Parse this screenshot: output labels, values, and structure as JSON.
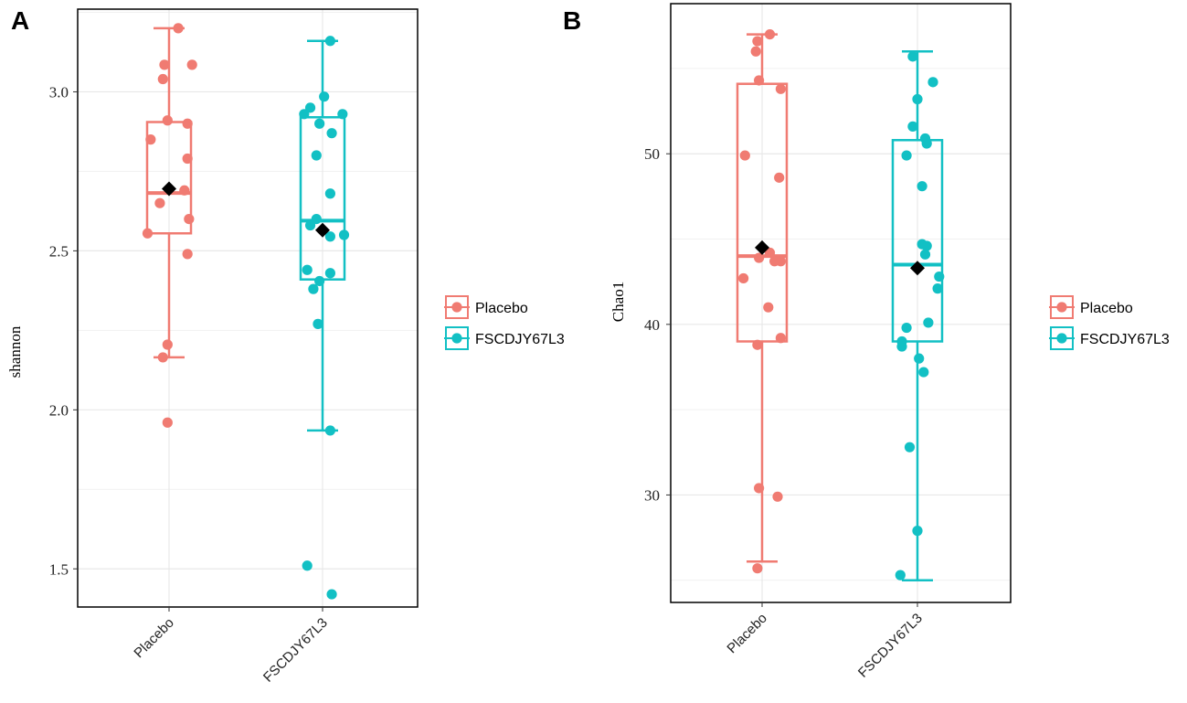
{
  "colors": {
    "placebo": "#F07B72",
    "treatment": "#12C0C4",
    "mean_marker": "#000000",
    "grid": "#e8e8e8",
    "frame": "#000000"
  },
  "legend": {
    "title": "",
    "items": [
      {
        "label": "Placebo",
        "color": "#F07B72"
      },
      {
        "label": "FSCDJY67L3",
        "color": "#12C0C4"
      }
    ]
  },
  "chart_data": [
    {
      "panel": "A",
      "type": "boxplot",
      "ylabel": "shannon",
      "ylim": [
        1.38,
        3.26
      ],
      "yticks": [
        1.5,
        2.0,
        2.5,
        3.0
      ],
      "ytick_labels": [
        "1.5",
        "2.0",
        "2.5",
        "3.0"
      ],
      "categories": [
        "Placebo",
        "FSCDJY67L3"
      ],
      "groups": [
        {
          "name": "Placebo",
          "color": "#F07B72",
          "whisker_low": 2.165,
          "q1": 2.555,
          "median": 2.682,
          "q3": 2.905,
          "whisker_high": 3.2,
          "mean": 2.695,
          "points": [
            {
              "jitter": 0.06,
              "y": 3.2
            },
            {
              "jitter": -0.03,
              "y": 3.085
            },
            {
              "jitter": 0.15,
              "y": 3.085
            },
            {
              "jitter": -0.04,
              "y": 3.04
            },
            {
              "jitter": -0.01,
              "y": 2.91
            },
            {
              "jitter": 0.12,
              "y": 2.9
            },
            {
              "jitter": -0.12,
              "y": 2.85
            },
            {
              "jitter": 0.12,
              "y": 2.79
            },
            {
              "jitter": 0.1,
              "y": 2.69
            },
            {
              "jitter": -0.06,
              "y": 2.65
            },
            {
              "jitter": 0.13,
              "y": 2.6
            },
            {
              "jitter": -0.14,
              "y": 2.555
            },
            {
              "jitter": 0.12,
              "y": 2.49
            },
            {
              "jitter": -0.01,
              "y": 2.205
            },
            {
              "jitter": -0.04,
              "y": 2.165
            },
            {
              "jitter": -0.01,
              "y": 1.96
            }
          ]
        },
        {
          "name": "FSCDJY67L3",
          "color": "#12C0C4",
          "whisker_low": 1.935,
          "q1": 2.41,
          "median": 2.595,
          "q3": 2.92,
          "whisker_high": 3.16,
          "mean": 2.565,
          "points": [
            {
              "jitter": 0.05,
              "y": 3.16
            },
            {
              "jitter": 0.01,
              "y": 2.985
            },
            {
              "jitter": -0.08,
              "y": 2.95
            },
            {
              "jitter": -0.12,
              "y": 2.93
            },
            {
              "jitter": 0.13,
              "y": 2.93
            },
            {
              "jitter": -0.02,
              "y": 2.9
            },
            {
              "jitter": 0.06,
              "y": 2.87
            },
            {
              "jitter": -0.04,
              "y": 2.8
            },
            {
              "jitter": 0.05,
              "y": 2.68
            },
            {
              "jitter": -0.04,
              "y": 2.6
            },
            {
              "jitter": -0.08,
              "y": 2.58
            },
            {
              "jitter": 0.14,
              "y": 2.55
            },
            {
              "jitter": 0.05,
              "y": 2.545
            },
            {
              "jitter": -0.1,
              "y": 2.44
            },
            {
              "jitter": 0.05,
              "y": 2.43
            },
            {
              "jitter": -0.02,
              "y": 2.405
            },
            {
              "jitter": -0.06,
              "y": 2.38
            },
            {
              "jitter": -0.03,
              "y": 2.27
            },
            {
              "jitter": 0.05,
              "y": 1.935
            },
            {
              "jitter": -0.1,
              "y": 1.51
            },
            {
              "jitter": 0.06,
              "y": 1.42
            }
          ]
        }
      ]
    },
    {
      "panel": "B",
      "type": "boxplot",
      "ylabel": "Chao1",
      "ylim": [
        23.7,
        58.8
      ],
      "yticks": [
        30,
        40,
        50
      ],
      "ytick_labels": [
        "30",
        "40",
        "50"
      ],
      "categories": [
        "Placebo",
        "FSCDJY67L3"
      ],
      "groups": [
        {
          "name": "Placebo",
          "color": "#F07B72",
          "whisker_low": 26.1,
          "q1": 39.0,
          "median": 44.0,
          "q3": 54.1,
          "whisker_high": 57.0,
          "mean": 44.5,
          "points": [
            {
              "jitter": 0.05,
              "y": 57.0
            },
            {
              "jitter": -0.03,
              "y": 56.6
            },
            {
              "jitter": -0.04,
              "y": 56.0
            },
            {
              "jitter": -0.02,
              "y": 54.3
            },
            {
              "jitter": 0.12,
              "y": 53.8
            },
            {
              "jitter": -0.11,
              "y": 49.9
            },
            {
              "jitter": 0.11,
              "y": 48.6
            },
            {
              "jitter": 0.05,
              "y": 44.2
            },
            {
              "jitter": -0.02,
              "y": 43.9
            },
            {
              "jitter": 0.08,
              "y": 43.7
            },
            {
              "jitter": 0.12,
              "y": 43.7
            },
            {
              "jitter": -0.12,
              "y": 42.7
            },
            {
              "jitter": 0.04,
              "y": 41.0
            },
            {
              "jitter": 0.12,
              "y": 39.2
            },
            {
              "jitter": -0.03,
              "y": 38.8
            },
            {
              "jitter": -0.02,
              "y": 30.4
            },
            {
              "jitter": 0.1,
              "y": 29.9
            },
            {
              "jitter": -0.03,
              "y": 25.7
            }
          ]
        },
        {
          "name": "FSCDJY67L3",
          "color": "#12C0C4",
          "whisker_low": 25.0,
          "q1": 39.0,
          "median": 43.5,
          "q3": 50.8,
          "whisker_high": 56.0,
          "mean": 43.3,
          "points": [
            {
              "jitter": -0.03,
              "y": 55.7
            },
            {
              "jitter": 0.1,
              "y": 54.2
            },
            {
              "jitter": 0.0,
              "y": 53.2
            },
            {
              "jitter": -0.03,
              "y": 51.6
            },
            {
              "jitter": 0.05,
              "y": 50.9
            },
            {
              "jitter": 0.06,
              "y": 50.6
            },
            {
              "jitter": -0.07,
              "y": 49.9
            },
            {
              "jitter": 0.03,
              "y": 48.1
            },
            {
              "jitter": 0.03,
              "y": 44.7
            },
            {
              "jitter": 0.06,
              "y": 44.6
            },
            {
              "jitter": 0.05,
              "y": 44.1
            },
            {
              "jitter": 0.14,
              "y": 42.8
            },
            {
              "jitter": 0.13,
              "y": 42.1
            },
            {
              "jitter": 0.07,
              "y": 40.1
            },
            {
              "jitter": -0.07,
              "y": 39.8
            },
            {
              "jitter": -0.1,
              "y": 39.0
            },
            {
              "jitter": -0.1,
              "y": 38.7
            },
            {
              "jitter": 0.01,
              "y": 38.0
            },
            {
              "jitter": 0.04,
              "y": 37.2
            },
            {
              "jitter": -0.05,
              "y": 32.8
            },
            {
              "jitter": 0.0,
              "y": 27.9
            },
            {
              "jitter": -0.11,
              "y": 25.3
            }
          ]
        }
      ]
    }
  ]
}
